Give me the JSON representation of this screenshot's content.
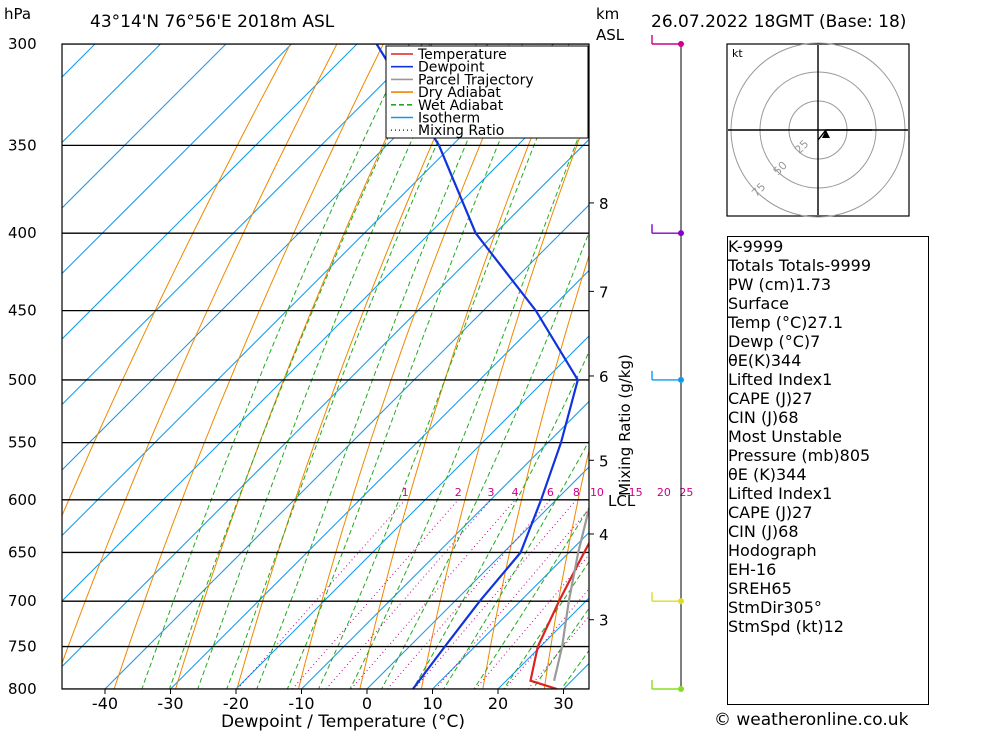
{
  "header": {
    "unit_hpa": "hPa",
    "location": "43°14'N 76°56'E 2018m ASL",
    "unit_km": "km",
    "unit_asl": "ASL",
    "datetime": "26.07.2022 18GMT (Base: 18)"
  },
  "chart_data": {
    "type": "line",
    "title": "43°14'N 76°56'E 2018m ASL",
    "xlabel": "Dewpoint / Temperature (°C)",
    "ylabel": "hPa",
    "right_axis_label": "Mixing Ratio (g/kg)",
    "xlim": [
      -47,
      34
    ],
    "ylim": [
      800,
      300
    ],
    "skew": "skew-T log-p",
    "x_ticks": [
      -40,
      -30,
      -20,
      -10,
      0,
      10,
      20,
      30
    ],
    "p_levels": [
      300,
      350,
      400,
      450,
      500,
      550,
      600,
      650,
      700,
      750,
      800
    ],
    "km_ticks": [
      {
        "km": 3,
        "p": 720
      },
      {
        "km": 4,
        "p": 632
      },
      {
        "km": 5,
        "p": 565
      },
      {
        "km": 6,
        "p": 497
      },
      {
        "km": 7,
        "p": 437
      },
      {
        "km": 8,
        "p": 382
      }
    ],
    "lcl": {
      "label": "LCL",
      "p": 600
    },
    "mixing_ratio_labels": [
      "1",
      "2",
      "3",
      "4",
      "6",
      "8",
      "10",
      "15",
      "20",
      "25"
    ],
    "mixing_ratio_values": [
      1,
      2,
      3,
      4,
      6,
      8,
      10,
      15,
      20,
      25
    ],
    "legend": [
      {
        "name": "Temperature",
        "color": "#dd2222",
        "dash": ""
      },
      {
        "name": "Dewpoint",
        "color": "#1133dd",
        "dash": ""
      },
      {
        "name": "Parcel Trajectory",
        "color": "#999999",
        "dash": ""
      },
      {
        "name": "Dry Adiabat",
        "color": "#ee8800",
        "dash": ""
      },
      {
        "name": "Wet Adiabat",
        "color": "#22aa22",
        "dash": "5,3"
      },
      {
        "name": "Isotherm",
        "color": "#1199ee",
        "dash": ""
      },
      {
        "name": "Mixing Ratio",
        "color": "#cc0088",
        "dash": "1,3"
      }
    ],
    "series": [
      {
        "name": "Temperature",
        "color": "#dd2222",
        "points": [
          [
            800,
            29
          ],
          [
            790,
            23.7
          ],
          [
            750,
            19.6
          ],
          [
            700,
            15.9
          ],
          [
            650,
            12.3
          ],
          [
            600,
            8.6
          ],
          [
            550,
            4.4
          ],
          [
            500,
            -0.7
          ],
          [
            450,
            -6.2
          ],
          [
            400,
            -11.9
          ],
          [
            350,
            -19.2
          ],
          [
            300,
            -28
          ]
        ]
      },
      {
        "name": "Dewpoint",
        "color": "#1133dd",
        "points": [
          [
            800,
            7
          ],
          [
            750,
            5.4
          ],
          [
            700,
            3.8
          ],
          [
            650,
            2.6
          ],
          [
            600,
            -2.3
          ],
          [
            550,
            -8
          ],
          [
            500,
            -15
          ],
          [
            450,
            -32
          ],
          [
            400,
            -53
          ],
          [
            350,
            -72
          ],
          [
            300,
            -97
          ]
        ]
      },
      {
        "name": "Parcel Trajectory",
        "color": "#999999",
        "points": [
          [
            790,
            27.3
          ],
          [
            750,
            23.3
          ],
          [
            700,
            17.4
          ],
          [
            650,
            11.4
          ],
          [
            610,
            6.6
          ],
          [
            600,
            6.3
          ],
          [
            550,
            2.3
          ],
          [
            500,
            -2.1
          ],
          [
            450,
            -7
          ],
          [
            400,
            -12.4
          ],
          [
            350,
            -18.8
          ],
          [
            300,
            -26.5
          ]
        ]
      }
    ]
  },
  "wind_barbs": [
    {
      "p": 800,
      "color": "#88dd22"
    },
    {
      "p": 700,
      "color": "#dddd22"
    },
    {
      "p": 500,
      "color": "#1199ee"
    },
    {
      "p": 400,
      "color": "#8800cc"
    },
    {
      "p": 300,
      "color": "#cc0088"
    }
  ],
  "hodograph": {
    "unit": "kt",
    "ring_labels": [
      "25",
      "50",
      "75"
    ]
  },
  "indices": {
    "rows": [
      {
        "label": "K",
        "value": "-9999"
      },
      {
        "label": "Totals Totals",
        "value": "-9999"
      },
      {
        "label": "PW (cm)",
        "value": "1.73"
      }
    ]
  },
  "surface": {
    "title": "Surface",
    "rows": [
      {
        "label": "Temp (°C)",
        "value": "27.1"
      },
      {
        "label": "Dewp (°C)",
        "value": "7"
      },
      {
        "label": "θE(K)",
        "value": "344"
      },
      {
        "label": "Lifted Index",
        "value": "1"
      },
      {
        "label": "CAPE (J)",
        "value": "27"
      },
      {
        "label": "CIN (J)",
        "value": "68"
      }
    ]
  },
  "most_unstable": {
    "title": "Most Unstable",
    "rows": [
      {
        "label": "Pressure (mb)",
        "value": "805"
      },
      {
        "label": "θE (K)",
        "value": "344"
      },
      {
        "label": "Lifted Index",
        "value": "1"
      },
      {
        "label": "CAPE (J)",
        "value": "27"
      },
      {
        "label": "CIN (J)",
        "value": "68"
      }
    ]
  },
  "hodograph_params": {
    "title": "Hodograph",
    "rows": [
      {
        "label": "EH",
        "value": "-16"
      },
      {
        "label": "SREH",
        "value": "65"
      },
      {
        "label": "StmDir",
        "value": "305°"
      },
      {
        "label": "StmSpd (kt)",
        "value": "12"
      }
    ]
  },
  "footer": {
    "credit": "© weatheronline.co.uk"
  }
}
